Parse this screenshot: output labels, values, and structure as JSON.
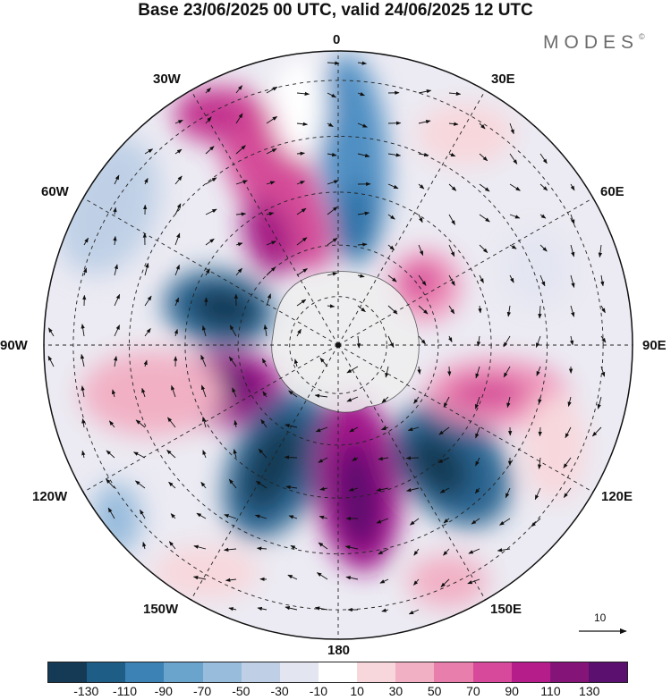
{
  "title": "Base 23/06/2025 00 UTC, valid 24/06/2025 12 UTC",
  "brand": "MODES",
  "brand_mark": "©",
  "longitude_labels": {
    "l0": "0",
    "l30e": "30E",
    "l60e": "60E",
    "l90e": "90E",
    "l120e": "120E",
    "l150e": "150E",
    "l180": "180",
    "l150w": "150W",
    "l120w": "120W",
    "l90w": "90W",
    "l60w": "60W",
    "l30w": "30W"
  },
  "reference_vector": "10",
  "colorbar": {
    "colors": [
      "#143a55",
      "#1e5d86",
      "#3c82b4",
      "#6aa3cb",
      "#98bcdc",
      "#bfd0e6",
      "#e3e5f1",
      "#ffffff",
      "#f7d7dc",
      "#f1b0c4",
      "#e87eac",
      "#d7499a",
      "#b51d8a",
      "#851479",
      "#5b0f6e"
    ],
    "tick_labels": [
      "-130",
      "-110",
      "-90",
      "-70",
      "-50",
      "-30",
      "-10",
      "10",
      "30",
      "50",
      "70",
      "90",
      "110",
      "130"
    ]
  },
  "map": {
    "projection": "polar stereographic (south pole)",
    "pole_marker": "dot",
    "graticule": "dashed"
  }
}
